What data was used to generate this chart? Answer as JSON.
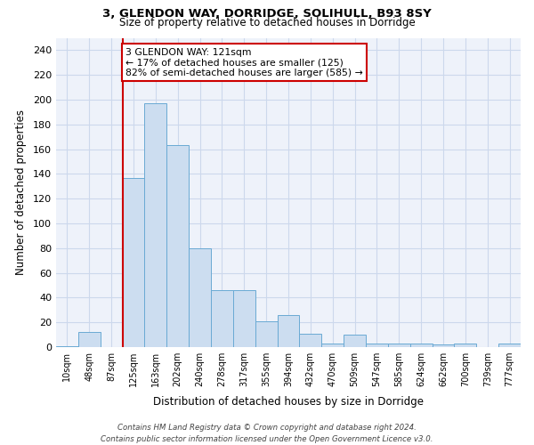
{
  "title1": "3, GLENDON WAY, DORRIDGE, SOLIHULL, B93 8SY",
  "title2": "Size of property relative to detached houses in Dorridge",
  "xlabel": "Distribution of detached houses by size in Dorridge",
  "ylabel": "Number of detached properties",
  "bar_values": [
    1,
    12,
    0,
    137,
    197,
    163,
    80,
    46,
    46,
    21,
    26,
    11,
    3,
    10,
    3,
    3,
    3,
    2,
    3,
    0,
    3
  ],
  "bar_labels": [
    "10sqm",
    "48sqm",
    "87sqm",
    "125sqm",
    "163sqm",
    "202sqm",
    "240sqm",
    "278sqm",
    "317sqm",
    "355sqm",
    "394sqm",
    "432sqm",
    "470sqm",
    "509sqm",
    "547sqm",
    "585sqm",
    "624sqm",
    "662sqm",
    "700sqm",
    "739sqm",
    "777sqm"
  ],
  "bar_color": "#ccddf0",
  "bar_edge_color": "#6aaad4",
  "property_line_x": 3.0,
  "property_line_color": "#cc0000",
  "annotation_text": "3 GLENDON WAY: 121sqm\n← 17% of detached houses are smaller (125)\n82% of semi-detached houses are larger (585) →",
  "annotation_box_color": "#ffffff",
  "annotation_box_edge": "#cc0000",
  "ylim": [
    0,
    250
  ],
  "yticks": [
    0,
    20,
    40,
    60,
    80,
    100,
    120,
    140,
    160,
    180,
    200,
    220,
    240
  ],
  "footer": "Contains HM Land Registry data © Crown copyright and database right 2024.\nContains public sector information licensed under the Open Government Licence v3.0.",
  "grid_color": "#ccd8ec",
  "bg_color": "#eef2fa"
}
